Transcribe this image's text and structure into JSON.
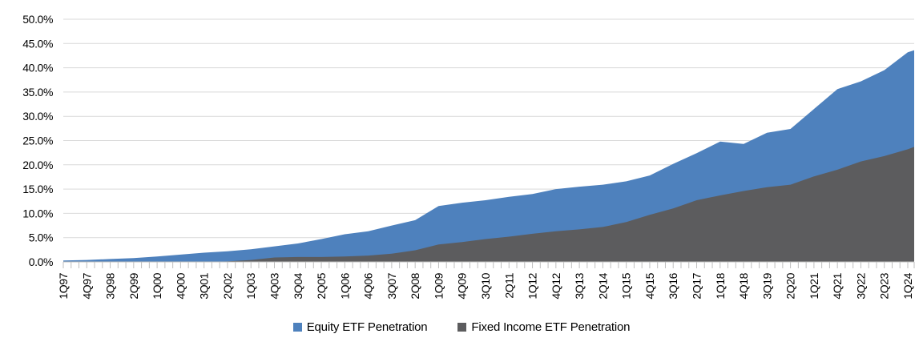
{
  "chart_data": {
    "type": "area",
    "variant": "overlay",
    "title": "",
    "xlabel": "",
    "ylabel": "",
    "categories": [
      "1Q97",
      "4Q97",
      "3Q98",
      "2Q99",
      "1Q00",
      "4Q00",
      "3Q01",
      "2Q02",
      "1Q03",
      "4Q03",
      "3Q04",
      "2Q05",
      "1Q06",
      "4Q06",
      "3Q07",
      "2Q08",
      "1Q09",
      "4Q09",
      "3Q10",
      "2Q11",
      "1Q12",
      "4Q12",
      "3Q13",
      "2Q14",
      "1Q15",
      "4Q15",
      "3Q16",
      "2Q17",
      "1Q18",
      "4Q18",
      "3Q19",
      "2Q20",
      "1Q21",
      "4Q21",
      "3Q22",
      "2Q23",
      "1Q24"
    ],
    "x_minor_ticks_per_label": 3,
    "series": [
      {
        "name": "Equity ETF Penetration",
        "color": "#4E81BD",
        "values": [
          0.3,
          0.4,
          0.6,
          0.8,
          1.1,
          1.5,
          1.9,
          2.2,
          2.6,
          3.2,
          3.8,
          4.7,
          5.7,
          6.3,
          7.5,
          8.6,
          11.5,
          12.2,
          12.7,
          13.4,
          14.0,
          15.0,
          15.5,
          15.9,
          16.6,
          17.8,
          20.2,
          22.4,
          24.8,
          24.3,
          26.6,
          27.4,
          31.5,
          35.6,
          37.2,
          39.5,
          43.2
        ],
        "edge_value": 43.6
      },
      {
        "name": "Fixed Income ETF Penetration",
        "color": "#5C5C5E",
        "values": [
          0,
          0,
          0,
          0,
          0,
          0,
          0,
          0.1,
          0.4,
          0.9,
          1.0,
          1.0,
          1.1,
          1.3,
          1.7,
          2.4,
          3.6,
          4.1,
          4.7,
          5.2,
          5.8,
          6.3,
          6.7,
          7.2,
          8.2,
          9.7,
          11.0,
          12.7,
          13.7,
          14.6,
          15.4,
          15.9,
          17.6,
          19.0,
          20.7,
          21.8,
          23.2
        ],
        "edge_value": 23.7
      }
    ],
    "ylim": [
      0,
      50
    ],
    "y_tick_labels": [
      "0.0%",
      "5.0%",
      "10.0%",
      "15.0%",
      "20.0%",
      "25.0%",
      "30.0%",
      "35.0%",
      "40.0%",
      "45.0%",
      "50.0%"
    ],
    "grid": "horizontal",
    "gridline_color": "#D9D9D9",
    "axis_color": "#BFBFBF",
    "legend_position": "bottom"
  }
}
